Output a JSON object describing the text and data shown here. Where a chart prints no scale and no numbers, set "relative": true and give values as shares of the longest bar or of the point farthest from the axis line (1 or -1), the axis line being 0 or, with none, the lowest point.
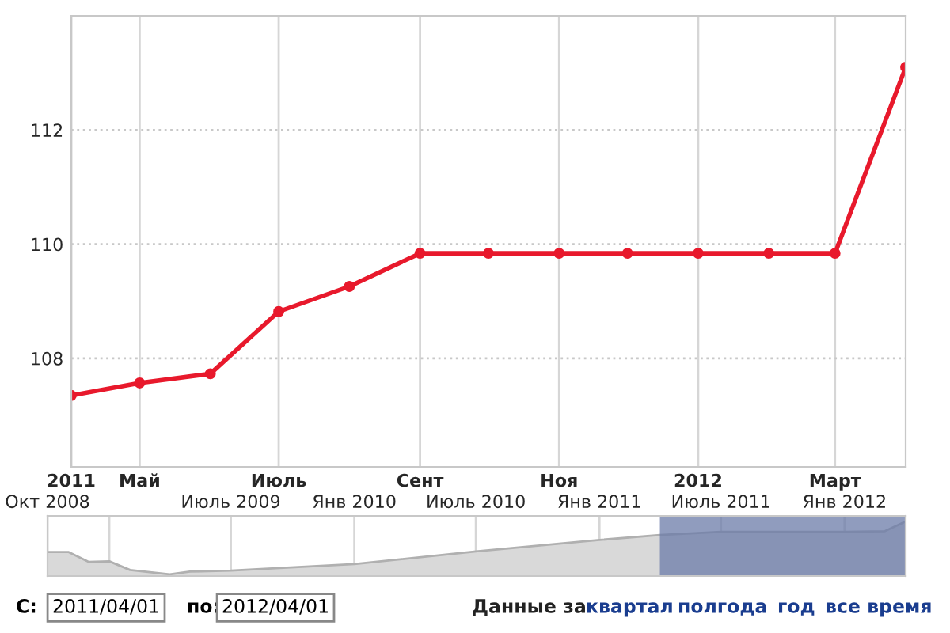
{
  "chart_data": [
    {
      "type": "line",
      "x": [
        "2011-04-01",
        "2011-05-01",
        "2011-06-01",
        "2011-07-01",
        "2011-08-01",
        "2011-09-01",
        "2011-10-01",
        "2011-11-01",
        "2011-12-01",
        "2012-01-01",
        "2012-02-01",
        "2012-03-01",
        "2012-04-01"
      ],
      "series": [
        {
          "color": "#e8192c",
          "values": [
            107.35,
            107.57,
            107.73,
            108.82,
            109.26,
            109.84,
            109.84,
            109.84,
            109.84,
            109.84,
            109.84,
            109.84,
            113.1
          ]
        }
      ],
      "marker": "circle",
      "line_style": "solid",
      "xlim": [
        "2011-04-01",
        "2012-04-01"
      ],
      "ylim": [
        106.1,
        114
      ],
      "xticks": [
        {
          "value": "2011-04-01",
          "label": "2011"
        },
        {
          "value": "2011-05-01",
          "label": "Май"
        },
        {
          "value": "2011-07-01",
          "label": "Июль"
        },
        {
          "value": "2011-09-01",
          "label": "Сент"
        },
        {
          "value": "2011-11-01",
          "label": "Ноя"
        },
        {
          "value": "2012-01-01",
          "label": "2012"
        },
        {
          "value": "2012-03-01",
          "label": "Март"
        }
      ],
      "yticks": [
        108,
        110,
        112
      ],
      "grid": true,
      "legend": false,
      "annotations": [
        "С:",
        "2011/04/01",
        "по:",
        "2012/04/01",
        "Данные за",
        "квартал",
        "полгода",
        "год",
        "все время"
      ]
    },
    {
      "type": "area",
      "relative": true,
      "tick_labels": "x",
      "grid": "x",
      "legend": false,
      "x": [
        "2008-10-01",
        "2008-11-01",
        "2008-12-01",
        "2009-01-01",
        "2009-02-01",
        "2009-04-01",
        "2009-05-01",
        "2009-07-01",
        "2010-01-01",
        "2010-07-01",
        "2011-01-01",
        "2011-04-01",
        "2011-07-01",
        "2012-01-01",
        "2012-03-01",
        "2012-04-01"
      ],
      "series": [
        {
          "color": "#d9d9d9",
          "values": [
            0.44,
            0.44,
            0.26,
            0.27,
            0.11,
            0.03,
            0.08,
            0.1,
            0.22,
            0.45,
            0.66,
            0.75,
            0.81,
            0.81,
            0.82,
            1
          ]
        }
      ],
      "xlim": [
        "2008-10-01",
        "2012-04-01"
      ],
      "xticks": [
        {
          "value": "2008-10-01",
          "label": "Окт 2008"
        },
        {
          "value": "2009-01-01",
          "label": null
        },
        {
          "value": "2009-07-01",
          "label": "Июль 2009"
        },
        {
          "value": "2010-01-01",
          "label": "Янв 2010"
        },
        {
          "value": "2010-07-01",
          "label": "Июль 2010"
        },
        {
          "value": "2011-01-01",
          "label": "Янв 2011"
        },
        {
          "value": "2011-07-01",
          "label": "Июль 2011"
        },
        {
          "value": "2012-01-01",
          "label": "Янв 2012"
        }
      ],
      "bands": [
        {
          "axis": "x",
          "from": "2011-04-01",
          "to": "2012-04-01",
          "color": "#6b7ba8"
        }
      ]
    }
  ]
}
